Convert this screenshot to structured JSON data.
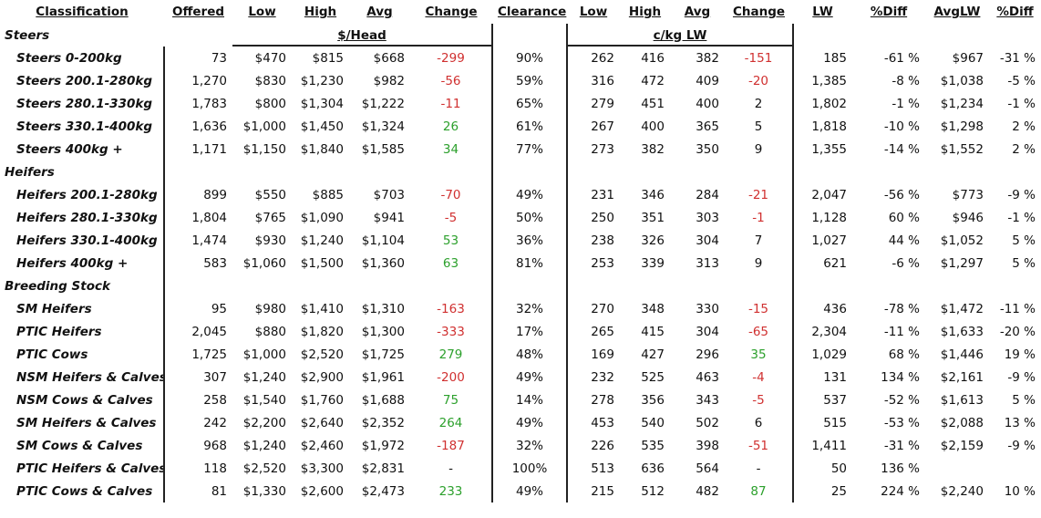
{
  "table": {
    "columns": [
      "Classification",
      "Offered",
      "Low",
      "High",
      "Avg",
      "Change",
      "Clearance",
      "Low",
      "High",
      "Avg",
      "Change",
      "LW",
      "%Diff",
      "AvgLW",
      "%Diff"
    ],
    "spans": [
      "$/Head",
      "c/kg LW"
    ],
    "groups": [
      {
        "name": "Steers",
        "rows": [
          [
            "Steers 0-200kg",
            "73",
            "$470",
            "$815",
            "$668",
            "-299",
            "90%",
            "262",
            "416",
            "382",
            "-151",
            "185",
            "-61 %",
            "$967",
            "-31 %"
          ],
          [
            "Steers 200.1-280kg",
            "1,270",
            "$830",
            "$1,230",
            "$982",
            "-56",
            "59%",
            "316",
            "472",
            "409",
            "-20",
            "1,385",
            "-8 %",
            "$1,038",
            "-5 %"
          ],
          [
            "Steers 280.1-330kg",
            "1,783",
            "$800",
            "$1,304",
            "$1,222",
            "-11",
            "65%",
            "279",
            "451",
            "400",
            "2",
            "1,802",
            "-1 %",
            "$1,234",
            "-1 %"
          ],
          [
            "Steers 330.1-400kg",
            "1,636",
            "$1,000",
            "$1,450",
            "$1,324",
            "26",
            "61%",
            "267",
            "400",
            "365",
            "5",
            "1,818",
            "-10 %",
            "$1,298",
            "2 %"
          ],
          [
            "Steers 400kg +",
            "1,171",
            "$1,150",
            "$1,840",
            "$1,585",
            "34",
            "77%",
            "273",
            "382",
            "350",
            "9",
            "1,355",
            "-14 %",
            "$1,552",
            "2 %"
          ]
        ]
      },
      {
        "name": "Heifers",
        "rows": [
          [
            "Heifers 200.1-280kg",
            "899",
            "$550",
            "$885",
            "$703",
            "-70",
            "49%",
            "231",
            "346",
            "284",
            "-21",
            "2,047",
            "-56 %",
            "$773",
            "-9 %"
          ],
          [
            "Heifers 280.1-330kg",
            "1,804",
            "$765",
            "$1,090",
            "$941",
            "-5",
            "50%",
            "250",
            "351",
            "303",
            "-1",
            "1,128",
            "60 %",
            "$946",
            "-1 %"
          ],
          [
            "Heifers 330.1-400kg",
            "1,474",
            "$930",
            "$1,240",
            "$1,104",
            "53",
            "36%",
            "238",
            "326",
            "304",
            "7",
            "1,027",
            "44 %",
            "$1,052",
            "5 %"
          ],
          [
            "Heifers 400kg +",
            "583",
            "$1,060",
            "$1,500",
            "$1,360",
            "63",
            "81%",
            "253",
            "339",
            "313",
            "9",
            "621",
            "-6 %",
            "$1,297",
            "5 %"
          ]
        ]
      },
      {
        "name": "Breeding Stock",
        "rows": [
          [
            "SM Heifers",
            "95",
            "$980",
            "$1,410",
            "$1,310",
            "-163",
            "32%",
            "270",
            "348",
            "330",
            "-15",
            "436",
            "-78 %",
            "$1,472",
            "-11 %"
          ],
          [
            "PTIC Heifers",
            "2,045",
            "$880",
            "$1,820",
            "$1,300",
            "-333",
            "17%",
            "265",
            "415",
            "304",
            "-65",
            "2,304",
            "-11 %",
            "$1,633",
            "-20 %"
          ],
          [
            "PTIC Cows",
            "1,725",
            "$1,000",
            "$2,520",
            "$1,725",
            "279",
            "48%",
            "169",
            "427",
            "296",
            "35",
            "1,029",
            "68 %",
            "$1,446",
            "19 %"
          ],
          [
            "NSM Heifers & Calves",
            "307",
            "$1,240",
            "$2,900",
            "$1,961",
            "-200",
            "49%",
            "232",
            "525",
            "463",
            "-4",
            "131",
            "134 %",
            "$2,161",
            "-9 %"
          ],
          [
            "NSM Cows & Calves",
            "258",
            "$1,540",
            "$1,760",
            "$1,688",
            "75",
            "14%",
            "278",
            "356",
            "343",
            "-5",
            "537",
            "-52 %",
            "$1,613",
            "5 %"
          ],
          [
            "SM Heifers & Calves",
            "242",
            "$2,200",
            "$2,640",
            "$2,352",
            "264",
            "49%",
            "453",
            "540",
            "502",
            "6",
            "515",
            "-53 %",
            "$2,088",
            "13 %"
          ],
          [
            "SM Cows & Calves",
            "968",
            "$1,240",
            "$2,460",
            "$1,972",
            "-187",
            "32%",
            "226",
            "535",
            "398",
            "-51",
            "1,411",
            "-31 %",
            "$2,159",
            "-9 %"
          ],
          [
            "PTIC Heifers & Calves",
            "118",
            "$2,520",
            "$3,300",
            "$2,831",
            "-",
            "100%",
            "513",
            "636",
            "564",
            "-",
            "50",
            "136 %",
            null,
            null
          ],
          [
            "PTIC Cows & Calves",
            "81",
            "$1,330",
            "$2,600",
            "$2,473",
            "233",
            "49%",
            "215",
            "512",
            "482",
            "87",
            "25",
            "224 %",
            "$2,240",
            "10 %"
          ]
        ]
      }
    ]
  }
}
